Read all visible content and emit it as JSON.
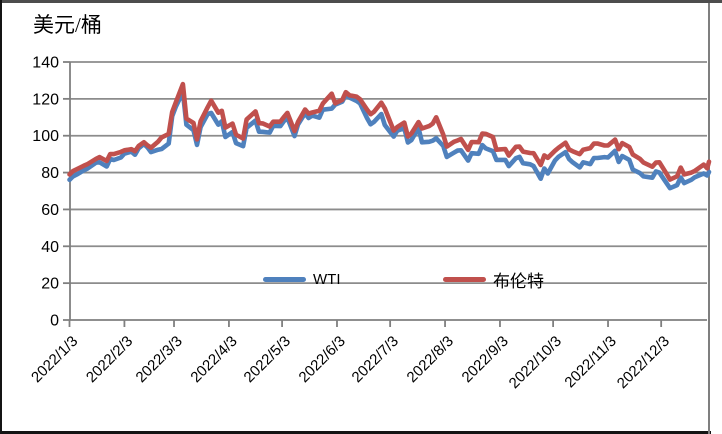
{
  "chart_data": {
    "type": "line",
    "title": "美元/桶",
    "ylabel": "",
    "xlabel": "",
    "ylim": [
      0,
      140
    ],
    "y_ticks": [
      0,
      20,
      40,
      60,
      80,
      100,
      120,
      140
    ],
    "x_tick_labels": [
      "2022/1/3",
      "2022/2/3",
      "2022/3/3",
      "2022/4/3",
      "2022/5/3",
      "2022/6/3",
      "2022/7/3",
      "2022/8/3",
      "2022/9/3",
      "2022/10/3",
      "2022/11/3",
      "2022/12/3"
    ],
    "grid": "horizontal",
    "legend_position": "inside-bottom-center",
    "axis_color": "#7f7f7f",
    "grid_color": "#8c8c8c",
    "x": [
      "2022/1/3",
      "2022/1/5",
      "2022/1/7",
      "2022/1/11",
      "2022/1/13",
      "2022/1/18",
      "2022/1/20",
      "2022/1/24",
      "2022/1/26",
      "2022/1/28",
      "2022/2/1",
      "2022/2/3",
      "2022/2/7",
      "2022/2/9",
      "2022/2/11",
      "2022/2/14",
      "2022/2/16",
      "2022/2/18",
      "2022/2/22",
      "2022/2/24",
      "2022/2/28",
      "2022/3/2",
      "2022/3/4",
      "2022/3/8",
      "2022/3/10",
      "2022/3/14",
      "2022/3/16",
      "2022/3/18",
      "2022/3/22",
      "2022/3/24",
      "2022/3/28",
      "2022/3/30",
      "2022/4/1",
      "2022/4/5",
      "2022/4/7",
      "2022/4/11",
      "2022/4/13",
      "2022/4/18",
      "2022/4/20",
      "2022/4/22",
      "2022/4/26",
      "2022/4/28",
      "2022/5/2",
      "2022/5/4",
      "2022/5/6",
      "2022/5/10",
      "2022/5/12",
      "2022/5/16",
      "2022/5/18",
      "2022/5/20",
      "2022/5/24",
      "2022/5/26",
      "2022/5/31",
      "2022/6/2",
      "2022/6/6",
      "2022/6/8",
      "2022/6/10",
      "2022/6/14",
      "2022/6/16",
      "2022/6/20",
      "2022/6/22",
      "2022/6/24",
      "2022/6/28",
      "2022/6/30",
      "2022/7/5",
      "2022/7/7",
      "2022/7/11",
      "2022/7/13",
      "2022/7/15",
      "2022/7/19",
      "2022/7/21",
      "2022/7/25",
      "2022/7/27",
      "2022/7/29",
      "2022/8/2",
      "2022/8/4",
      "2022/8/8",
      "2022/8/10",
      "2022/8/12",
      "2022/8/16",
      "2022/8/18",
      "2022/8/22",
      "2022/8/24",
      "2022/8/26",
      "2022/8/30",
      "2022/9/1",
      "2022/9/6",
      "2022/9/8",
      "2022/9/12",
      "2022/9/14",
      "2022/9/16",
      "2022/9/20",
      "2022/9/22",
      "2022/9/26",
      "2022/9/28",
      "2022/9/30",
      "2022/10/4",
      "2022/10/6",
      "2022/10/10",
      "2022/10/12",
      "2022/10/14",
      "2022/10/18",
      "2022/10/20",
      "2022/10/24",
      "2022/10/26",
      "2022/10/28",
      "2022/11/1",
      "2022/11/3",
      "2022/11/7",
      "2022/11/9",
      "2022/11/11",
      "2022/11/15",
      "2022/11/17",
      "2022/11/21",
      "2022/11/23",
      "2022/11/28",
      "2022/11/30",
      "2022/12/2",
      "2022/12/6",
      "2022/12/8",
      "2022/12/12",
      "2022/12/14",
      "2022/12/16",
      "2022/12/20",
      "2022/12/22",
      "2022/12/27",
      "2022/12/29",
      "2022/12/30"
    ],
    "series": [
      {
        "name": "WTI",
        "color": "#4F81BD",
        "values": [
          76.1,
          77.9,
          78.9,
          81.2,
          82.1,
          85.4,
          85.6,
          83.3,
          87.4,
          86.8,
          88.2,
          90.3,
          91.3,
          89.7,
          93.1,
          95.5,
          93.7,
          91.1,
          92.4,
          92.8,
          95.7,
          110.6,
          115.7,
          123.7,
          106.0,
          103.0,
          95.0,
          104.7,
          111.8,
          112.3,
          106.0,
          107.8,
          99.3,
          102.0,
          96.0,
          94.3,
          104.3,
          108.2,
          102.2,
          102.1,
          101.7,
          105.4,
          105.2,
          107.8,
          109.8,
          99.8,
          106.1,
          112.2,
          109.6,
          110.9,
          109.8,
          114.1,
          114.7,
          116.9,
          118.5,
          122.1,
          120.7,
          118.9,
          117.6,
          109.5,
          106.2,
          107.6,
          111.8,
          105.8,
          99.5,
          102.7,
          104.1,
          96.3,
          97.6,
          104.2,
          96.4,
          96.7,
          97.3,
          98.6,
          94.4,
          88.5,
          90.8,
          91.9,
          92.1,
          86.5,
          90.5,
          90.2,
          94.9,
          93.1,
          91.6,
          86.9,
          86.9,
          83.5,
          87.8,
          88.5,
          85.1,
          84.5,
          83.5,
          76.7,
          82.2,
          79.5,
          86.5,
          88.5,
          91.1,
          87.3,
          85.6,
          82.8,
          85.6,
          84.6,
          87.9,
          87.9,
          88.4,
          88.2,
          91.8,
          85.8,
          89.0,
          86.9,
          81.6,
          79.7,
          77.9,
          77.2,
          80.6,
          80.0,
          74.3,
          71.5,
          73.2,
          77.3,
          74.3,
          76.1,
          77.5,
          79.5,
          78.4,
          80.3
        ]
      },
      {
        "name": "布伦特",
        "color": "#C0504D",
        "values": [
          79.0,
          80.8,
          81.8,
          83.7,
          84.5,
          87.5,
          88.4,
          86.3,
          90.0,
          90.0,
          91.2,
          92.1,
          92.7,
          91.6,
          94.4,
          96.5,
          94.8,
          93.5,
          96.8,
          99.1,
          101.0,
          112.9,
          118.1,
          128.0,
          109.3,
          106.9,
          98.0,
          107.9,
          115.5,
          119.0,
          112.5,
          113.5,
          104.4,
          106.6,
          100.6,
          98.5,
          108.8,
          113.2,
          106.8,
          106.7,
          105.0,
          107.6,
          107.6,
          110.1,
          112.4,
          102.5,
          107.5,
          114.2,
          112.0,
          112.6,
          113.6,
          117.4,
          122.8,
          117.6,
          119.5,
          123.6,
          122.0,
          121.2,
          119.8,
          114.1,
          111.7,
          113.1,
          117.9,
          114.8,
          102.8,
          104.7,
          107.1,
          99.6,
          101.2,
          107.4,
          103.9,
          105.2,
          106.6,
          110.0,
          100.5,
          94.1,
          96.7,
          97.4,
          98.2,
          92.3,
          96.6,
          96.5,
          101.2,
          101.0,
          99.3,
          92.4,
          92.8,
          89.2,
          94.0,
          94.1,
          91.4,
          90.6,
          90.5,
          84.1,
          89.3,
          88.0,
          91.8,
          93.4,
          96.2,
          92.5,
          91.6,
          90.0,
          92.4,
          93.3,
          95.7,
          95.8,
          94.7,
          94.7,
          97.9,
          92.7,
          96.0,
          93.9,
          89.8,
          87.5,
          85.4,
          83.2,
          85.4,
          85.6,
          79.4,
          76.2,
          78.0,
          82.7,
          79.0,
          80.0,
          80.9,
          84.3,
          82.3,
          85.9
        ]
      }
    ]
  }
}
